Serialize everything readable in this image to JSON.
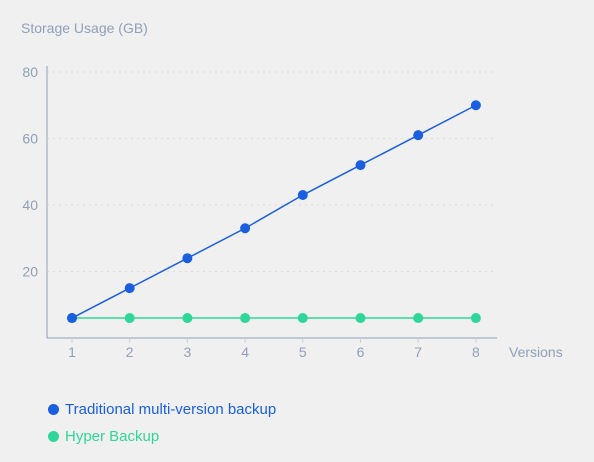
{
  "chart_data": {
    "type": "line",
    "ylabel": "Storage Usage (GB)",
    "xlabel": "Versions",
    "x": [
      1,
      2,
      3,
      4,
      5,
      6,
      7,
      8
    ],
    "x_tick_labels": [
      "1",
      "2",
      "3",
      "4",
      "5",
      "6",
      "7",
      "8"
    ],
    "y_tick_labels": [
      "20",
      "40",
      "60",
      "80"
    ],
    "y_ticks": [
      20,
      40,
      60,
      80
    ],
    "ylim": [
      0,
      82
    ],
    "grid": "horizontal dotted",
    "legend_position": "bottom-left",
    "series": [
      {
        "name": "Traditional multi-version backup",
        "color": "#1a5fe0",
        "values": [
          6,
          15,
          24,
          33,
          43,
          52,
          61,
          70
        ]
      },
      {
        "name": "Hyper Backup",
        "color": "#2fd69a",
        "values": [
          6,
          6,
          6,
          6,
          6,
          6,
          6,
          6
        ]
      }
    ]
  }
}
